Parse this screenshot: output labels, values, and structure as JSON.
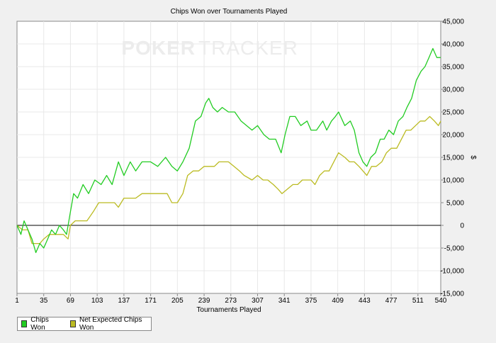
{
  "chart_data": {
    "type": "line",
    "title": "Chips Won over Tournaments Played",
    "watermark_left": "POKER",
    "watermark_right": "TRACKER",
    "xlabel": "Tournaments Played",
    "ylabel": "$",
    "xlim": [
      1,
      540
    ],
    "ylim": [
      -15000,
      45000
    ],
    "x_ticks": [
      1,
      35,
      69,
      103,
      137,
      171,
      205,
      239,
      273,
      307,
      341,
      375,
      409,
      443,
      477,
      511,
      540
    ],
    "y_ticks": [
      -15000,
      -10000,
      -5000,
      0,
      5000,
      10000,
      15000,
      20000,
      25000,
      30000,
      35000,
      40000,
      45000
    ],
    "y_tick_labels": [
      "-15,000",
      "-10,000",
      "-5,000",
      "0",
      "5,000",
      "10,000",
      "15,000",
      "20,000",
      "25,000",
      "30,000",
      "35,000",
      "40,000",
      "45,000"
    ],
    "grid": true,
    "legend_position": "bottom-left",
    "series": [
      {
        "name": "Chips Won",
        "color": "#22cc22",
        "points": [
          [
            1,
            0
          ],
          [
            6,
            -2000
          ],
          [
            10,
            1000
          ],
          [
            15,
            -1000
          ],
          [
            20,
            -3000
          ],
          [
            25,
            -6000
          ],
          [
            30,
            -4000
          ],
          [
            35,
            -5000
          ],
          [
            40,
            -3000
          ],
          [
            45,
            -1000
          ],
          [
            50,
            -2000
          ],
          [
            55,
            0
          ],
          [
            60,
            -1000
          ],
          [
            64,
            -2000
          ],
          [
            69,
            3000
          ],
          [
            73,
            7000
          ],
          [
            78,
            6000
          ],
          [
            85,
            9000
          ],
          [
            92,
            7000
          ],
          [
            100,
            10000
          ],
          [
            108,
            9000
          ],
          [
            115,
            11000
          ],
          [
            122,
            9000
          ],
          [
            130,
            14000
          ],
          [
            137,
            11000
          ],
          [
            145,
            14000
          ],
          [
            152,
            12000
          ],
          [
            160,
            14000
          ],
          [
            171,
            14000
          ],
          [
            180,
            13000
          ],
          [
            190,
            15000
          ],
          [
            198,
            13000
          ],
          [
            205,
            12000
          ],
          [
            212,
            14000
          ],
          [
            220,
            17000
          ],
          [
            228,
            23000
          ],
          [
            235,
            24000
          ],
          [
            241,
            27000
          ],
          [
            245,
            28000
          ],
          [
            250,
            26000
          ],
          [
            256,
            25000
          ],
          [
            262,
            26000
          ],
          [
            270,
            25000
          ],
          [
            278,
            25000
          ],
          [
            286,
            23000
          ],
          [
            293,
            22000
          ],
          [
            300,
            21000
          ],
          [
            307,
            22000
          ],
          [
            315,
            20000
          ],
          [
            322,
            19000
          ],
          [
            330,
            19000
          ],
          [
            337,
            16000
          ],
          [
            342,
            20000
          ],
          [
            348,
            24000
          ],
          [
            355,
            24000
          ],
          [
            362,
            22000
          ],
          [
            370,
            23000
          ],
          [
            375,
            21000
          ],
          [
            382,
            21000
          ],
          [
            390,
            23000
          ],
          [
            395,
            21000
          ],
          [
            401,
            23000
          ],
          [
            406,
            24000
          ],
          [
            410,
            25000
          ],
          [
            418,
            22000
          ],
          [
            425,
            23000
          ],
          [
            430,
            21000
          ],
          [
            436,
            16000
          ],
          [
            441,
            14000
          ],
          [
            446,
            13000
          ],
          [
            451,
            15000
          ],
          [
            457,
            16000
          ],
          [
            463,
            19000
          ],
          [
            468,
            19000
          ],
          [
            474,
            21000
          ],
          [
            480,
            20000
          ],
          [
            486,
            23000
          ],
          [
            492,
            24000
          ],
          [
            497,
            26000
          ],
          [
            503,
            28000
          ],
          [
            509,
            32000
          ],
          [
            515,
            34000
          ],
          [
            520,
            35000
          ],
          [
            525,
            37000
          ],
          [
            530,
            39000
          ],
          [
            535,
            37000
          ],
          [
            540,
            37000
          ]
        ]
      },
      {
        "name": "Net Expected Chips Won",
        "color": "#bbbb22",
        "points": [
          [
            1,
            0
          ],
          [
            8,
            -1000
          ],
          [
            15,
            -1000
          ],
          [
            20,
            -4000
          ],
          [
            25,
            -4000
          ],
          [
            30,
            -4000
          ],
          [
            35,
            -3000
          ],
          [
            42,
            -2000
          ],
          [
            48,
            -2000
          ],
          [
            55,
            -2000
          ],
          [
            60,
            -2000
          ],
          [
            66,
            -3000
          ],
          [
            69,
            0
          ],
          [
            75,
            1000
          ],
          [
            82,
            1000
          ],
          [
            90,
            1000
          ],
          [
            98,
            3000
          ],
          [
            105,
            5000
          ],
          [
            112,
            5000
          ],
          [
            118,
            5000
          ],
          [
            125,
            5000
          ],
          [
            130,
            4000
          ],
          [
            137,
            6000
          ],
          [
            145,
            6000
          ],
          [
            152,
            6000
          ],
          [
            160,
            7000
          ],
          [
            171,
            7000
          ],
          [
            178,
            7000
          ],
          [
            185,
            7000
          ],
          [
            192,
            7000
          ],
          [
            198,
            5000
          ],
          [
            205,
            5000
          ],
          [
            212,
            7000
          ],
          [
            218,
            11000
          ],
          [
            225,
            12000
          ],
          [
            232,
            12000
          ],
          [
            239,
            13000
          ],
          [
            246,
            13000
          ],
          [
            252,
            13000
          ],
          [
            258,
            14000
          ],
          [
            264,
            14000
          ],
          [
            270,
            14000
          ],
          [
            277,
            13000
          ],
          [
            284,
            12000
          ],
          [
            290,
            11000
          ],
          [
            300,
            10000
          ],
          [
            307,
            11000
          ],
          [
            314,
            10000
          ],
          [
            320,
            10000
          ],
          [
            327,
            9000
          ],
          [
            333,
            8000
          ],
          [
            338,
            7000
          ],
          [
            345,
            8000
          ],
          [
            352,
            9000
          ],
          [
            358,
            9000
          ],
          [
            364,
            10000
          ],
          [
            370,
            10000
          ],
          [
            375,
            10000
          ],
          [
            380,
            9000
          ],
          [
            386,
            11000
          ],
          [
            392,
            12000
          ],
          [
            398,
            12000
          ],
          [
            404,
            14000
          ],
          [
            410,
            16000
          ],
          [
            418,
            15000
          ],
          [
            424,
            14000
          ],
          [
            430,
            14000
          ],
          [
            436,
            13000
          ],
          [
            441,
            12000
          ],
          [
            446,
            11000
          ],
          [
            452,
            13000
          ],
          [
            458,
            13000
          ],
          [
            465,
            14000
          ],
          [
            471,
            16000
          ],
          [
            477,
            17000
          ],
          [
            484,
            17000
          ],
          [
            490,
            19000
          ],
          [
            496,
            21000
          ],
          [
            502,
            21000
          ],
          [
            508,
            22000
          ],
          [
            514,
            23000
          ],
          [
            520,
            23000
          ],
          [
            526,
            24000
          ],
          [
            532,
            23000
          ],
          [
            537,
            22000
          ],
          [
            540,
            23000
          ]
        ]
      }
    ]
  }
}
